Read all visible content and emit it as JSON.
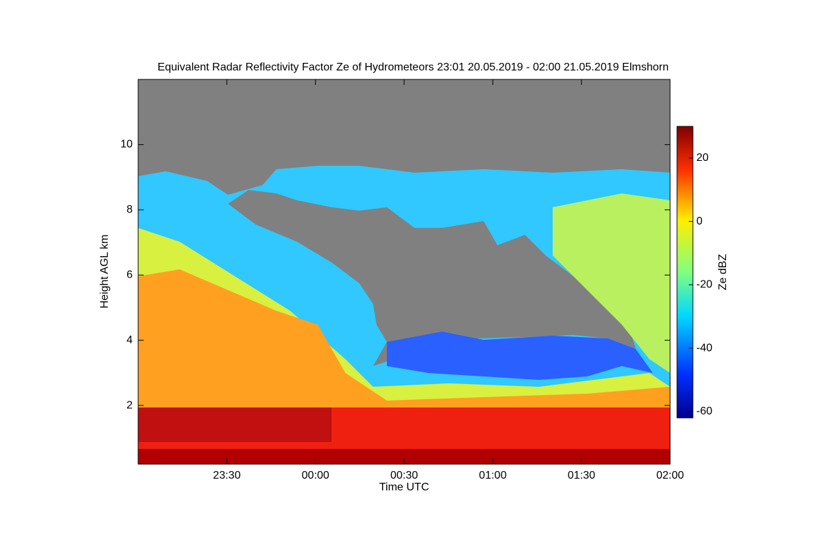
{
  "chart_data": {
    "type": "heatmap",
    "title": "Equivalent Radar Reflectivity Factor Ze of Hydrometeors   23:01 20.05.2019 - 02:00 21.05.2019 Elmshorn",
    "x_label": "Time UTC",
    "y_label": "Height AGL km",
    "xlim": [
      0,
      180
    ],
    "xticks": [
      {
        "value": 30,
        "label": "23:30"
      },
      {
        "value": 60,
        "label": "00:00"
      },
      {
        "value": 90,
        "label": "00:30"
      },
      {
        "value": 120,
        "label": "01:00"
      },
      {
        "value": 150,
        "label": "01:30"
      },
      {
        "value": 180,
        "label": "02:00"
      }
    ],
    "ylim": [
      0.2,
      12
    ],
    "yticks": [
      2,
      4,
      6,
      8,
      10
    ],
    "colorbar": {
      "label": "Ze dBZ",
      "lim": [
        -62,
        30
      ],
      "ticks": [
        -60,
        -40,
        -20,
        0,
        20
      ]
    }
  }
}
